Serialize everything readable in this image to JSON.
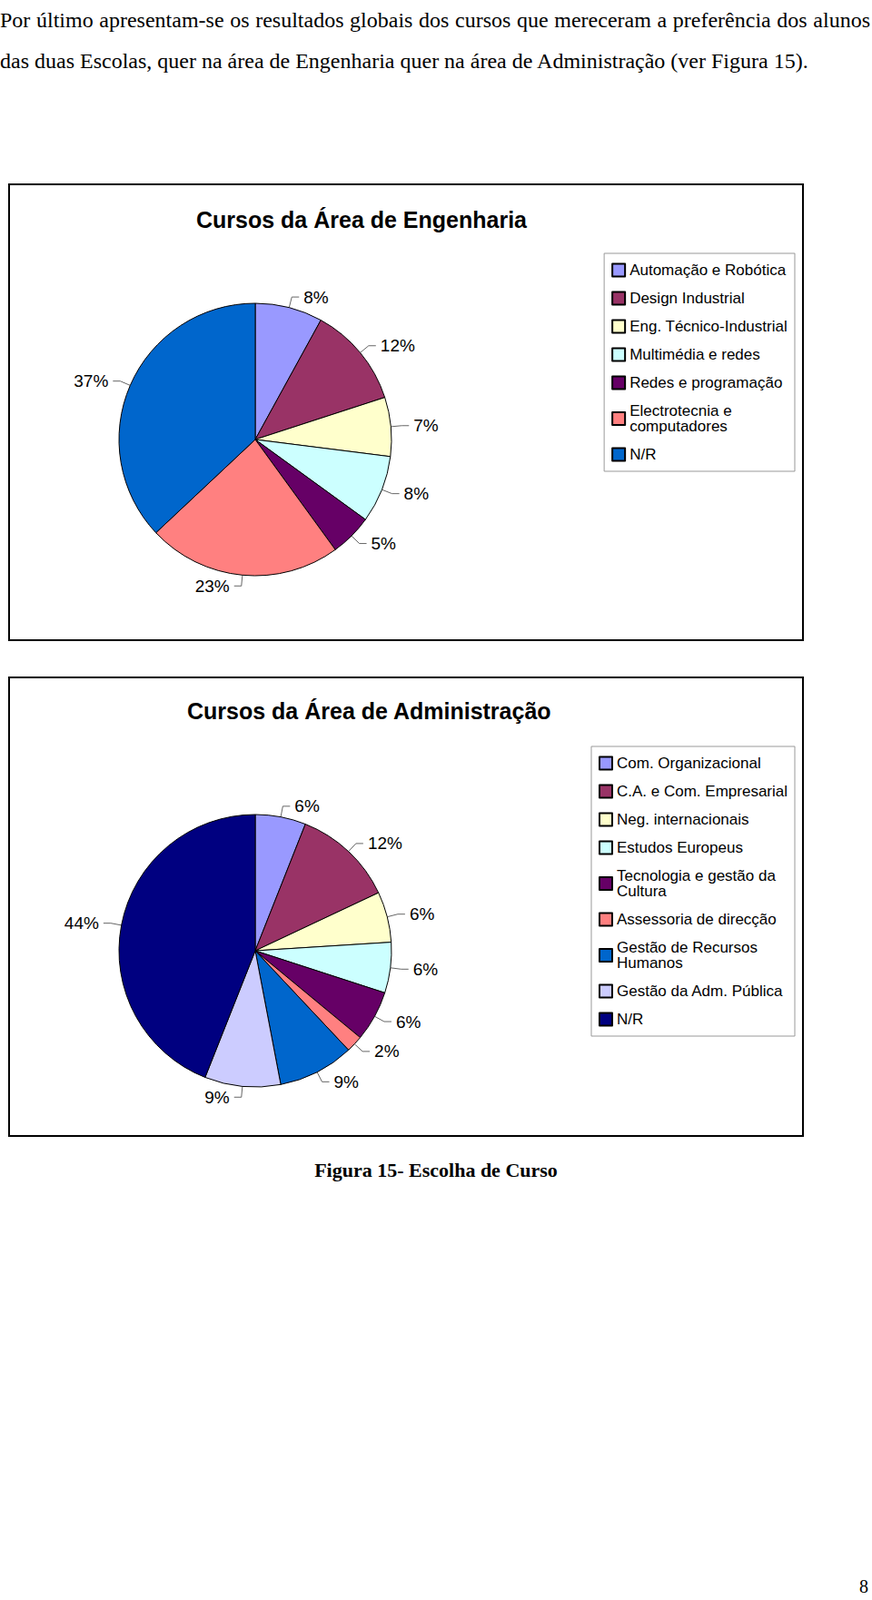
{
  "paragraph": "Por último apresentam-se os resultados globais dos cursos que mereceram a preferência dos alunos das duas Escolas, quer na área de Engenharia quer na área de Administração (ver Figura 15).",
  "chart_data": [
    {
      "type": "pie",
      "title": "Cursos da Área de Engenharia",
      "categories": [
        "Automação e Robótica",
        "Design Industrial",
        "Eng. Técnico-Industrial",
        "Multimédia e redes",
        "Redes e programação",
        "Electrotecnia e computadores",
        "N/R"
      ],
      "values": [
        8,
        12,
        7,
        8,
        5,
        23,
        37
      ],
      "value_labels": [
        "8%",
        "12%",
        "7%",
        "8%",
        "5%",
        "23%",
        "37%"
      ],
      "colors": [
        "#9999ff",
        "#993366",
        "#ffffcc",
        "#ccffff",
        "#660066",
        "#ff8080",
        "#0066cc"
      ],
      "data_labels": true,
      "legend": "right"
    },
    {
      "type": "pie",
      "title": "Cursos da Área de Administração",
      "categories": [
        "Com. Organizacional",
        "C.A. e Com. Empresarial",
        "Neg. internacionais",
        "Estudos Europeus",
        "Tecnologia e gestão da Cultura",
        "Assessoria de direcção",
        "Gestão de Recursos Humanos",
        "Gestão da Adm. Pública",
        "N/R"
      ],
      "values": [
        6,
        12,
        6,
        6,
        6,
        2,
        9,
        9,
        44
      ],
      "value_labels": [
        "6%",
        "12%",
        "6%",
        "6%",
        "6%",
        "2%",
        "9%",
        "9%",
        "44%"
      ],
      "colors": [
        "#9999ff",
        "#993366",
        "#ffffcc",
        "#ccffff",
        "#660066",
        "#ff8080",
        "#0066cc",
        "#ccccff",
        "#000080"
      ],
      "data_labels": true,
      "legend": "right"
    }
  ],
  "caption": "Figura 15- Escolha de Curso",
  "page_number": "8"
}
